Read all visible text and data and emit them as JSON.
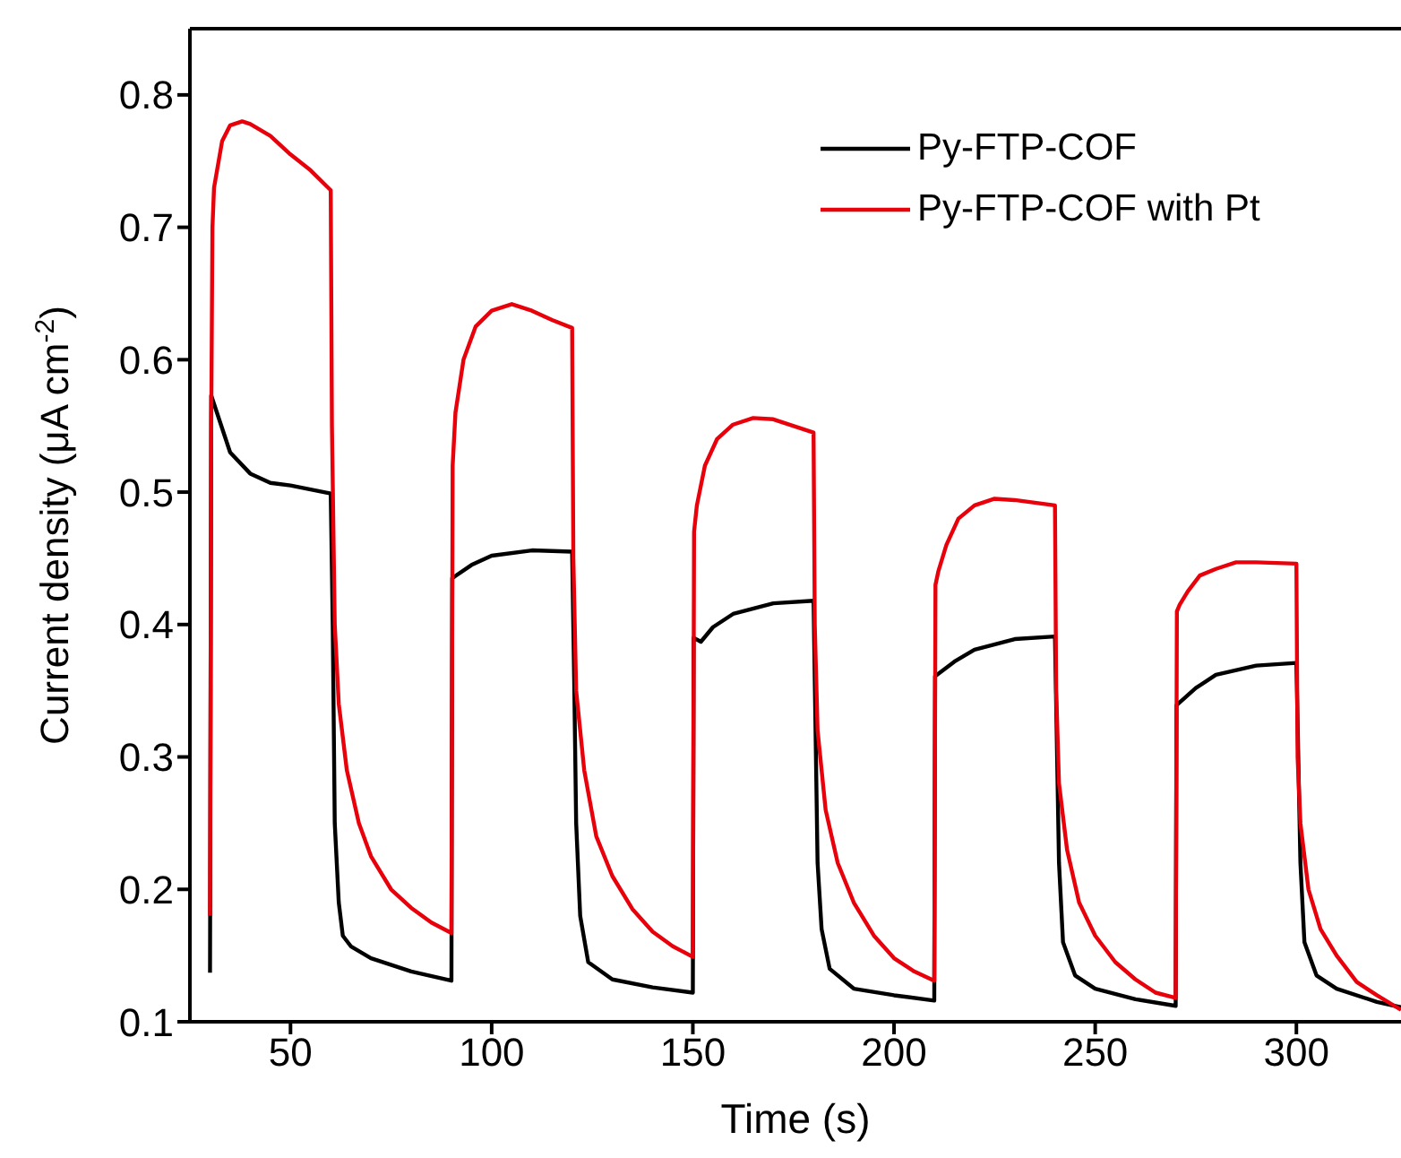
{
  "chart_data": {
    "type": "line",
    "xlabel": "Time (s)",
    "ylabel": "Current density (μA cm$^{-2}$)",
    "xlim": [
      25,
      326
    ],
    "xticks": [
      50,
      100,
      150,
      200,
      250,
      300
    ],
    "ylim": [
      0.1,
      0.85
    ],
    "yticks": [
      0.1,
      0.2,
      0.3,
      0.4,
      0.5,
      0.6,
      0.7,
      0.8
    ],
    "grid": false,
    "legend": "top right",
    "marker": "none",
    "line_style": "solid",
    "series": [
      {
        "name": "Py-FTP-COF",
        "color": "#000000",
        "x": [
          30,
          30.3,
          35,
          40,
          45,
          50,
          55,
          60,
          60.5,
          61,
          62,
          63,
          65,
          70,
          80,
          90,
          90.2,
          95,
          100,
          110,
          120,
          120.5,
          121,
          122,
          124,
          130,
          140,
          150,
          150.2,
          152,
          155,
          160,
          170,
          180,
          181,
          182,
          184,
          190,
          200,
          210,
          210.2,
          215,
          220,
          230,
          240,
          241,
          242,
          245,
          250,
          260,
          270,
          270.2,
          275,
          280,
          290,
          300,
          301,
          302,
          305,
          310,
          320,
          326
        ],
        "values": [
          0.137,
          0.573,
          0.53,
          0.514,
          0.507,
          0.505,
          0.502,
          0.499,
          0.4,
          0.25,
          0.19,
          0.165,
          0.157,
          0.148,
          0.138,
          0.131,
          0.435,
          0.445,
          0.452,
          0.456,
          0.455,
          0.36,
          0.25,
          0.18,
          0.145,
          0.132,
          0.126,
          0.122,
          0.39,
          0.387,
          0.398,
          0.408,
          0.416,
          0.418,
          0.22,
          0.17,
          0.14,
          0.125,
          0.12,
          0.116,
          0.361,
          0.372,
          0.381,
          0.389,
          0.391,
          0.22,
          0.16,
          0.135,
          0.125,
          0.117,
          0.112,
          0.339,
          0.352,
          0.362,
          0.369,
          0.371,
          0.22,
          0.16,
          0.135,
          0.125,
          0.115,
          0.111
        ]
      },
      {
        "name": "Py-FTP-COF with Pt",
        "color": "#e8000b",
        "x": [
          30,
          30.3,
          30.6,
          31,
          33,
          35,
          38,
          40,
          45,
          50,
          55,
          60,
          60.3,
          61,
          62,
          64,
          67,
          70,
          75,
          80,
          85,
          90,
          90.3,
          91,
          93,
          96,
          100,
          105,
          110,
          115,
          120,
          120.3,
          121,
          123,
          126,
          130,
          135,
          140,
          145,
          150,
          150.3,
          151,
          153,
          156,
          160,
          165,
          170,
          180,
          180.3,
          181,
          183,
          186,
          190,
          195,
          200,
          205,
          210,
          210.3,
          211,
          213,
          216,
          220,
          225,
          230,
          240,
          240.3,
          241,
          243,
          246,
          250,
          255,
          260,
          265,
          270,
          270.3,
          271,
          273,
          276,
          280,
          285,
          290,
          300,
          300.3,
          301,
          303,
          306,
          310,
          315,
          320,
          326
        ],
        "values": [
          0.18,
          0.55,
          0.7,
          0.73,
          0.765,
          0.777,
          0.78,
          0.778,
          0.769,
          0.755,
          0.743,
          0.728,
          0.55,
          0.4,
          0.34,
          0.29,
          0.25,
          0.225,
          0.2,
          0.186,
          0.175,
          0.167,
          0.52,
          0.56,
          0.6,
          0.625,
          0.637,
          0.642,
          0.637,
          0.63,
          0.624,
          0.45,
          0.35,
          0.29,
          0.24,
          0.21,
          0.185,
          0.168,
          0.157,
          0.149,
          0.47,
          0.49,
          0.52,
          0.54,
          0.551,
          0.556,
          0.555,
          0.545,
          0.4,
          0.32,
          0.26,
          0.22,
          0.19,
          0.165,
          0.148,
          0.138,
          0.131,
          0.43,
          0.44,
          0.46,
          0.48,
          0.49,
          0.495,
          0.494,
          0.49,
          0.35,
          0.28,
          0.23,
          0.19,
          0.165,
          0.145,
          0.132,
          0.122,
          0.118,
          0.41,
          0.415,
          0.425,
          0.437,
          0.442,
          0.447,
          0.447,
          0.446,
          0.3,
          0.25,
          0.2,
          0.17,
          0.15,
          0.13,
          0.12,
          0.109
        ]
      }
    ]
  }
}
